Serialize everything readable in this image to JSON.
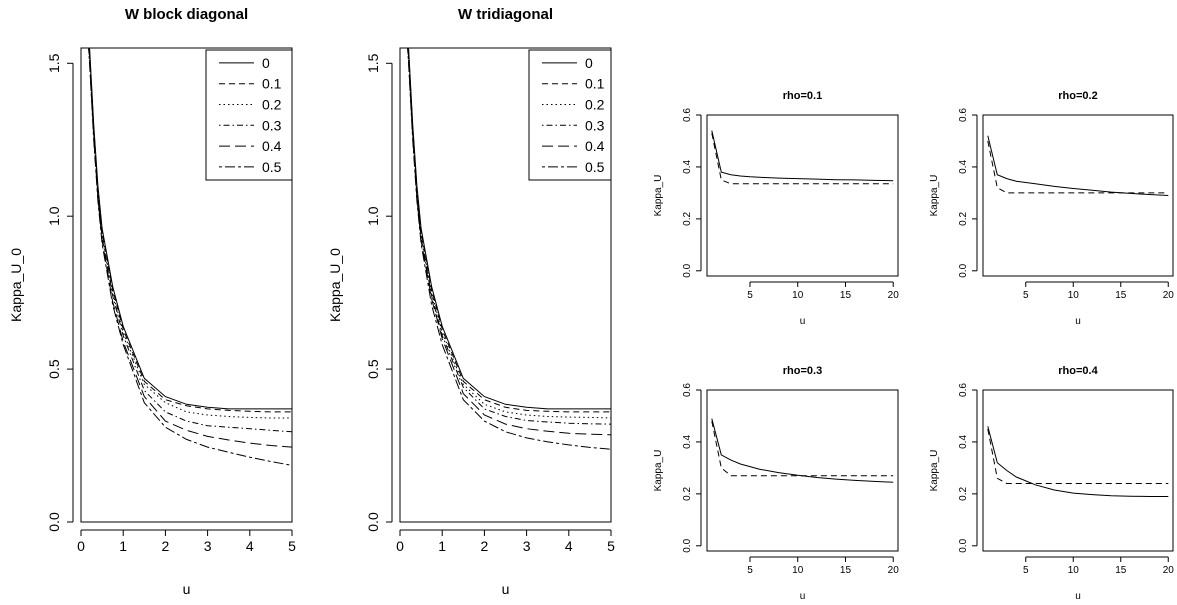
{
  "chart_data": [
    {
      "type": "line",
      "title": "W block diagonal",
      "xlabel": "u",
      "ylabel": "Kappa_U_0",
      "xlim": [
        0,
        5
      ],
      "ylim": [
        0,
        1.55
      ],
      "xticks": [
        "0",
        "1",
        "2",
        "3",
        "4",
        "5"
      ],
      "yticks": [
        "0.0",
        "0.5",
        "1.0",
        "1.5"
      ],
      "legend_position": "top-right",
      "x": [
        0.1,
        0.2,
        0.3,
        0.4,
        0.5,
        0.75,
        1.0,
        1.5,
        2.0,
        2.5,
        3.0,
        3.5,
        4.0,
        4.5,
        5.0
      ],
      "series": [
        {
          "name": "0",
          "dash": "solid",
          "values": [
            1.75,
            1.56,
            1.3,
            1.1,
            0.96,
            0.77,
            0.64,
            0.47,
            0.41,
            0.385,
            0.375,
            0.37,
            0.37,
            0.37,
            0.37
          ]
        },
        {
          "name": "0.1",
          "dash": "dashed",
          "values": [
            1.75,
            1.55,
            1.29,
            1.09,
            0.95,
            0.76,
            0.63,
            0.46,
            0.4,
            0.38,
            0.37,
            0.365,
            0.362,
            0.36,
            0.36
          ]
        },
        {
          "name": "0.2",
          "dash": "dotted",
          "values": [
            1.74,
            1.54,
            1.28,
            1.08,
            0.94,
            0.75,
            0.62,
            0.45,
            0.39,
            0.36,
            0.35,
            0.345,
            0.342,
            0.34,
            0.34
          ]
        },
        {
          "name": "0.3",
          "dash": "dotdash",
          "values": [
            1.73,
            1.53,
            1.27,
            1.07,
            0.93,
            0.74,
            0.61,
            0.43,
            0.36,
            0.33,
            0.315,
            0.31,
            0.305,
            0.3,
            0.295
          ]
        },
        {
          "name": "0.4",
          "dash": "longdash",
          "values": [
            1.72,
            1.52,
            1.26,
            1.06,
            0.92,
            0.72,
            0.59,
            0.41,
            0.33,
            0.3,
            0.28,
            0.268,
            0.258,
            0.25,
            0.245
          ]
        },
        {
          "name": "0.5",
          "dash": "twodash",
          "values": [
            1.71,
            1.51,
            1.25,
            1.05,
            0.91,
            0.71,
            0.58,
            0.39,
            0.31,
            0.27,
            0.245,
            0.228,
            0.212,
            0.198,
            0.185
          ]
        }
      ]
    },
    {
      "type": "line",
      "title": "W tridiagonal",
      "xlabel": "u",
      "ylabel": "Kappa_U_0",
      "xlim": [
        0,
        5
      ],
      "ylim": [
        0,
        1.55
      ],
      "xticks": [
        "0",
        "1",
        "2",
        "3",
        "4",
        "5"
      ],
      "yticks": [
        "0.0",
        "0.5",
        "1.0",
        "1.5"
      ],
      "legend_position": "top-right",
      "x": [
        0.1,
        0.2,
        0.3,
        0.4,
        0.5,
        0.75,
        1.0,
        1.5,
        2.0,
        2.5,
        3.0,
        3.5,
        4.0,
        4.5,
        5.0
      ],
      "series": [
        {
          "name": "0",
          "dash": "solid",
          "values": [
            1.75,
            1.56,
            1.3,
            1.1,
            0.96,
            0.77,
            0.64,
            0.47,
            0.41,
            0.385,
            0.375,
            0.37,
            0.37,
            0.37,
            0.37
          ]
        },
        {
          "name": "0.1",
          "dash": "dashed",
          "values": [
            1.75,
            1.55,
            1.29,
            1.09,
            0.95,
            0.76,
            0.63,
            0.46,
            0.4,
            0.375,
            0.365,
            0.362,
            0.36,
            0.36,
            0.36
          ]
        },
        {
          "name": "0.2",
          "dash": "dotted",
          "values": [
            1.74,
            1.54,
            1.28,
            1.08,
            0.94,
            0.75,
            0.62,
            0.45,
            0.385,
            0.36,
            0.35,
            0.345,
            0.343,
            0.342,
            0.34
          ]
        },
        {
          "name": "0.3",
          "dash": "dotdash",
          "values": [
            1.73,
            1.53,
            1.27,
            1.07,
            0.93,
            0.74,
            0.61,
            0.44,
            0.37,
            0.345,
            0.332,
            0.327,
            0.323,
            0.321,
            0.32
          ]
        },
        {
          "name": "0.4",
          "dash": "longdash",
          "values": [
            1.72,
            1.52,
            1.26,
            1.06,
            0.92,
            0.73,
            0.6,
            0.42,
            0.35,
            0.32,
            0.305,
            0.297,
            0.29,
            0.287,
            0.285
          ]
        },
        {
          "name": "0.5",
          "dash": "twodash",
          "values": [
            1.71,
            1.51,
            1.25,
            1.05,
            0.91,
            0.71,
            0.58,
            0.4,
            0.33,
            0.295,
            0.275,
            0.262,
            0.252,
            0.244,
            0.238
          ]
        }
      ]
    },
    {
      "type": "line",
      "title": "rho=0.1",
      "xlabel": "u",
      "ylabel": "Kappa_U",
      "xlim": [
        0.5,
        20.5
      ],
      "ylim": [
        -0.02,
        0.6
      ],
      "xticks": [
        "5",
        "10",
        "15",
        "20"
      ],
      "yticks": [
        "0.0",
        "0.2",
        "0.4",
        "0.6"
      ],
      "x": [
        1,
        2,
        3,
        4,
        5,
        6,
        8,
        10,
        12,
        14,
        16,
        18,
        20
      ],
      "series": [
        {
          "dash": "solid",
          "values": [
            0.54,
            0.38,
            0.37,
            0.365,
            0.362,
            0.36,
            0.357,
            0.355,
            0.353,
            0.351,
            0.35,
            0.348,
            0.347
          ]
        },
        {
          "dash": "dashed",
          "values": [
            0.53,
            0.35,
            0.335,
            0.335,
            0.335,
            0.335,
            0.335,
            0.335,
            0.335,
            0.335,
            0.335,
            0.335,
            0.335
          ]
        }
      ]
    },
    {
      "type": "line",
      "title": "rho=0.2",
      "xlabel": "u",
      "ylabel": "Kappa_U",
      "xlim": [
        0.5,
        20.5
      ],
      "ylim": [
        -0.02,
        0.6
      ],
      "xticks": [
        "5",
        "10",
        "15",
        "20"
      ],
      "yticks": [
        "0.0",
        "0.2",
        "0.4",
        "0.6"
      ],
      "x": [
        1,
        2,
        3,
        4,
        5,
        6,
        8,
        10,
        12,
        14,
        16,
        18,
        20
      ],
      "series": [
        {
          "dash": "solid",
          "values": [
            0.52,
            0.37,
            0.355,
            0.345,
            0.34,
            0.335,
            0.325,
            0.317,
            0.31,
            0.303,
            0.298,
            0.294,
            0.29
          ]
        },
        {
          "dash": "dashed",
          "values": [
            0.5,
            0.32,
            0.3,
            0.3,
            0.3,
            0.3,
            0.3,
            0.3,
            0.3,
            0.3,
            0.3,
            0.3,
            0.3
          ]
        }
      ]
    },
    {
      "type": "line",
      "title": "rho=0.3",
      "xlabel": "u",
      "ylabel": "Kappa_U",
      "xlim": [
        0.5,
        20.5
      ],
      "ylim": [
        -0.02,
        0.6
      ],
      "xticks": [
        "5",
        "10",
        "15",
        "20"
      ],
      "yticks": [
        "0.0",
        "0.2",
        "0.4",
        "0.6"
      ],
      "x": [
        1,
        2,
        3,
        4,
        5,
        6,
        8,
        10,
        12,
        14,
        16,
        18,
        20
      ],
      "series": [
        {
          "dash": "solid",
          "values": [
            0.49,
            0.35,
            0.33,
            0.315,
            0.305,
            0.295,
            0.282,
            0.272,
            0.263,
            0.257,
            0.252,
            0.248,
            0.245
          ]
        },
        {
          "dash": "dashed",
          "values": [
            0.48,
            0.3,
            0.27,
            0.27,
            0.27,
            0.27,
            0.27,
            0.27,
            0.27,
            0.27,
            0.27,
            0.27,
            0.27
          ]
        }
      ]
    },
    {
      "type": "line",
      "title": "rho=0.4",
      "xlabel": "u",
      "ylabel": "Kappa_U",
      "xlim": [
        0.5,
        20.5
      ],
      "ylim": [
        -0.02,
        0.6
      ],
      "xticks": [
        "5",
        "10",
        "15",
        "20"
      ],
      "yticks": [
        "0.0",
        "0.2",
        "0.4",
        "0.6"
      ],
      "x": [
        1,
        2,
        3,
        4,
        5,
        6,
        8,
        10,
        12,
        14,
        16,
        18,
        20
      ],
      "series": [
        {
          "dash": "solid",
          "values": [
            0.46,
            0.32,
            0.29,
            0.265,
            0.25,
            0.235,
            0.215,
            0.203,
            0.197,
            0.193,
            0.191,
            0.19,
            0.19
          ]
        },
        {
          "dash": "dashed",
          "values": [
            0.45,
            0.26,
            0.24,
            0.24,
            0.24,
            0.24,
            0.24,
            0.24,
            0.24,
            0.24,
            0.24,
            0.24,
            0.24
          ]
        }
      ]
    }
  ]
}
